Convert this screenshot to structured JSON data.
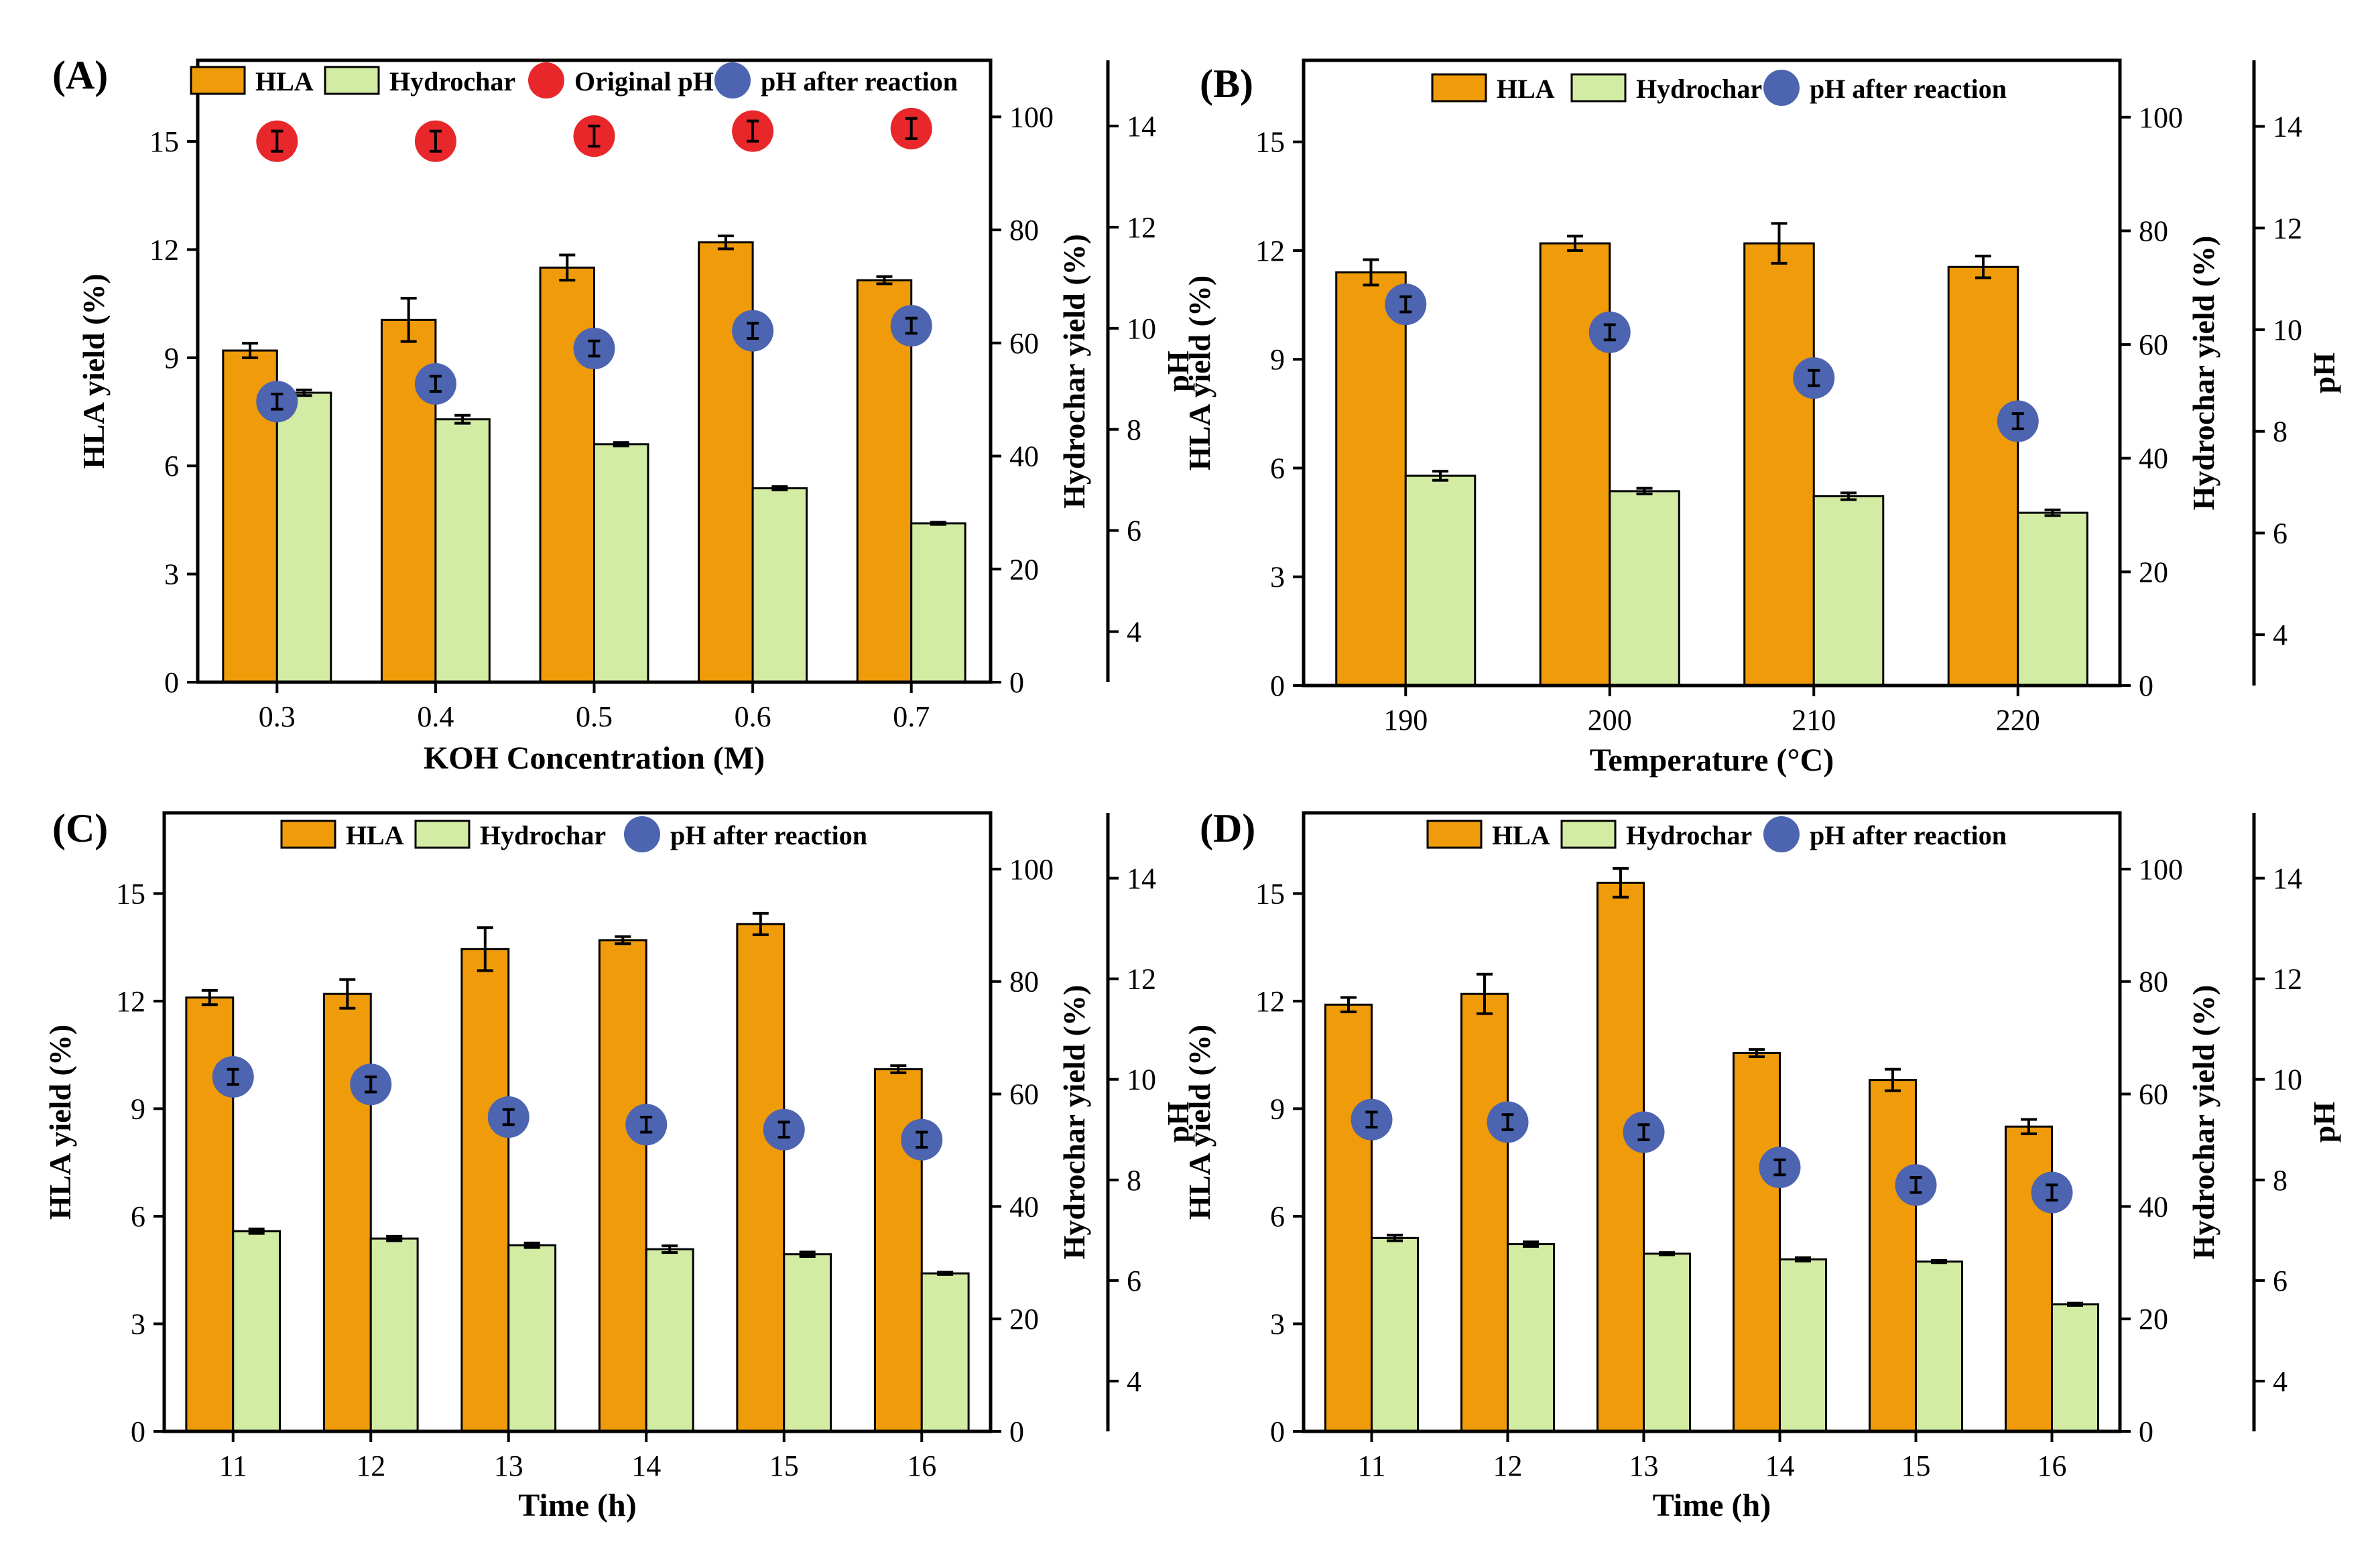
{
  "colors": {
    "hla": "#F09B0A",
    "hydrochar": "#D3ECA4",
    "original_ph": "#E8272A",
    "ph_after": "#4D64B0",
    "axis": "#000000"
  },
  "legend_labels": {
    "hla": "HLA",
    "hydrochar": "Hydrochar",
    "original_ph": "Original pH",
    "ph_after": "pH after reaction"
  },
  "chart_data": [
    {
      "panel": "(A)",
      "type": "bar",
      "xlabel": "KOH Concentration (M)",
      "ylabel_left": "HLA yield (%)",
      "ylabel_right1": "Hydrochar yield (%)",
      "ylabel_right2": "pH",
      "ylim_left": [
        0,
        17.25
      ],
      "ylim_right1": [
        0,
        110
      ],
      "ylim_right2": [
        3,
        15.3
      ],
      "yticks_left": [
        0,
        3,
        6,
        9,
        12,
        15
      ],
      "yticks_right1": [
        0,
        20,
        40,
        60,
        80,
        100
      ],
      "yticks_right2": [
        4,
        6,
        8,
        10,
        12,
        14
      ],
      "legend": [
        "hla",
        "hydrochar",
        "original_ph",
        "ph_after"
      ],
      "categories": [
        "0.3",
        "0.4",
        "0.5",
        "0.6",
        "0.7"
      ],
      "series": [
        {
          "name": "HLA",
          "key": "hla",
          "values": [
            9.2,
            10.05,
            11.5,
            12.2,
            11.15
          ],
          "errors": [
            0.2,
            0.6,
            0.35,
            0.18,
            0.1
          ]
        },
        {
          "name": "Hydrochar",
          "key": "hydrochar",
          "values": [
            51.2,
            46.5,
            42.1,
            34.3,
            28.1
          ],
          "errors": [
            0.5,
            0.7,
            0.3,
            0.3,
            0.2
          ]
        },
        {
          "name": "Original pH",
          "key": "original_ph",
          "values": [
            13.7,
            13.7,
            13.8,
            13.9,
            13.95
          ],
          "errors": [
            0.2,
            0.2,
            0.2,
            0.2,
            0.2
          ]
        },
        {
          "name": "pH after reaction",
          "key": "ph_after",
          "values": [
            8.55,
            8.9,
            9.6,
            9.95,
            10.05
          ],
          "errors": [
            0.15,
            0.15,
            0.15,
            0.15,
            0.15
          ]
        }
      ]
    },
    {
      "panel": "(B)",
      "type": "bar",
      "xlabel": "Temperature (°C)",
      "ylabel_left": "HLA yield (%)",
      "ylabel_right1": "Hydrochar yield (%)",
      "ylabel_right2": "pH",
      "ylim_left": [
        0,
        17.25
      ],
      "ylim_right1": [
        0,
        110
      ],
      "ylim_right2": [
        3,
        15.3
      ],
      "yticks_left": [
        0,
        3,
        6,
        9,
        12,
        15
      ],
      "yticks_right1": [
        0,
        20,
        40,
        60,
        80,
        100
      ],
      "yticks_right2": [
        4,
        6,
        8,
        10,
        12,
        14
      ],
      "legend": [
        "hla",
        "hydrochar",
        "ph_after"
      ],
      "categories": [
        "190",
        "200",
        "210",
        "220"
      ],
      "series": [
        {
          "name": "HLA",
          "key": "hla",
          "values": [
            11.4,
            12.2,
            12.2,
            11.55
          ],
          "errors": [
            0.35,
            0.2,
            0.55,
            0.3
          ]
        },
        {
          "name": "Hydrochar",
          "key": "hydrochar",
          "values": [
            36.9,
            34.2,
            33.3,
            30.4
          ],
          "errors": [
            0.8,
            0.5,
            0.6,
            0.5
          ]
        },
        {
          "name": "pH after reaction",
          "key": "ph_after",
          "values": [
            10.5,
            9.95,
            9.05,
            8.2
          ],
          "errors": [
            0.15,
            0.15,
            0.15,
            0.15
          ]
        }
      ]
    },
    {
      "panel": "(C)",
      "type": "bar",
      "xlabel": "Time (h)",
      "ylabel_left": "HLA yield (%)",
      "ylabel_right1": "Hydrochar yield (%)",
      "ylabel_right2": "pH",
      "ylim_left": [
        0,
        17.25
      ],
      "ylim_right1": [
        0,
        110
      ],
      "ylim_right2": [
        3,
        15.3
      ],
      "yticks_left": [
        0,
        3,
        6,
        9,
        12,
        15
      ],
      "yticks_right1": [
        0,
        20,
        40,
        60,
        80,
        100
      ],
      "yticks_right2": [
        4,
        6,
        8,
        10,
        12,
        14
      ],
      "legend": [
        "hla",
        "hydrochar",
        "ph_after"
      ],
      "categories": [
        "11",
        "12",
        "13",
        "14",
        "15",
        "16"
      ],
      "series": [
        {
          "name": "HLA",
          "key": "hla",
          "values": [
            12.1,
            12.2,
            13.45,
            13.7,
            14.15,
            10.1
          ],
          "errors": [
            0.2,
            0.4,
            0.6,
            0.1,
            0.3,
            0.1
          ]
        },
        {
          "name": "Hydrochar",
          "key": "hydrochar",
          "values": [
            35.6,
            34.3,
            33.1,
            32.4,
            31.5,
            28.1
          ],
          "errors": [
            0.4,
            0.4,
            0.4,
            0.6,
            0.4,
            0.2
          ]
        },
        {
          "name": "pH after reaction",
          "key": "ph_after",
          "values": [
            10.05,
            9.9,
            9.25,
            9.1,
            9.0,
            8.8
          ],
          "errors": [
            0.15,
            0.15,
            0.15,
            0.15,
            0.15,
            0.15
          ]
        }
      ]
    },
    {
      "panel": "(D)",
      "type": "bar",
      "xlabel": "Time (h)",
      "ylabel_left": "HLA yield (%)",
      "ylabel_right1": "Hydrochar yield (%)",
      "ylabel_right2": "pH",
      "ylim_left": [
        0,
        17.25
      ],
      "ylim_right1": [
        0,
        110
      ],
      "ylim_right2": [
        3,
        15.3
      ],
      "yticks_left": [
        0,
        3,
        6,
        9,
        12,
        15
      ],
      "yticks_right1": [
        0,
        20,
        40,
        60,
        80,
        100
      ],
      "yticks_right2": [
        4,
        6,
        8,
        10,
        12,
        14
      ],
      "legend": [
        "hla",
        "hydrochar",
        "ph_after"
      ],
      "categories": [
        "11",
        "12",
        "13",
        "14",
        "15",
        "16"
      ],
      "series": [
        {
          "name": "HLA",
          "key": "hla",
          "values": [
            11.9,
            12.2,
            15.3,
            10.55,
            9.8,
            8.5
          ],
          "errors": [
            0.2,
            0.55,
            0.4,
            0.1,
            0.3,
            0.2
          ]
        },
        {
          "name": "Hydrochar",
          "key": "hydrochar",
          "values": [
            34.4,
            33.3,
            31.6,
            30.6,
            30.2,
            22.6
          ],
          "errors": [
            0.5,
            0.4,
            0.2,
            0.3,
            0.2,
            0.2
          ]
        },
        {
          "name": "pH after reaction",
          "key": "ph_after",
          "values": [
            9.2,
            9.15,
            8.95,
            8.25,
            7.9,
            7.75
          ],
          "errors": [
            0.15,
            0.15,
            0.15,
            0.15,
            0.15,
            0.15
          ]
        }
      ]
    }
  ]
}
